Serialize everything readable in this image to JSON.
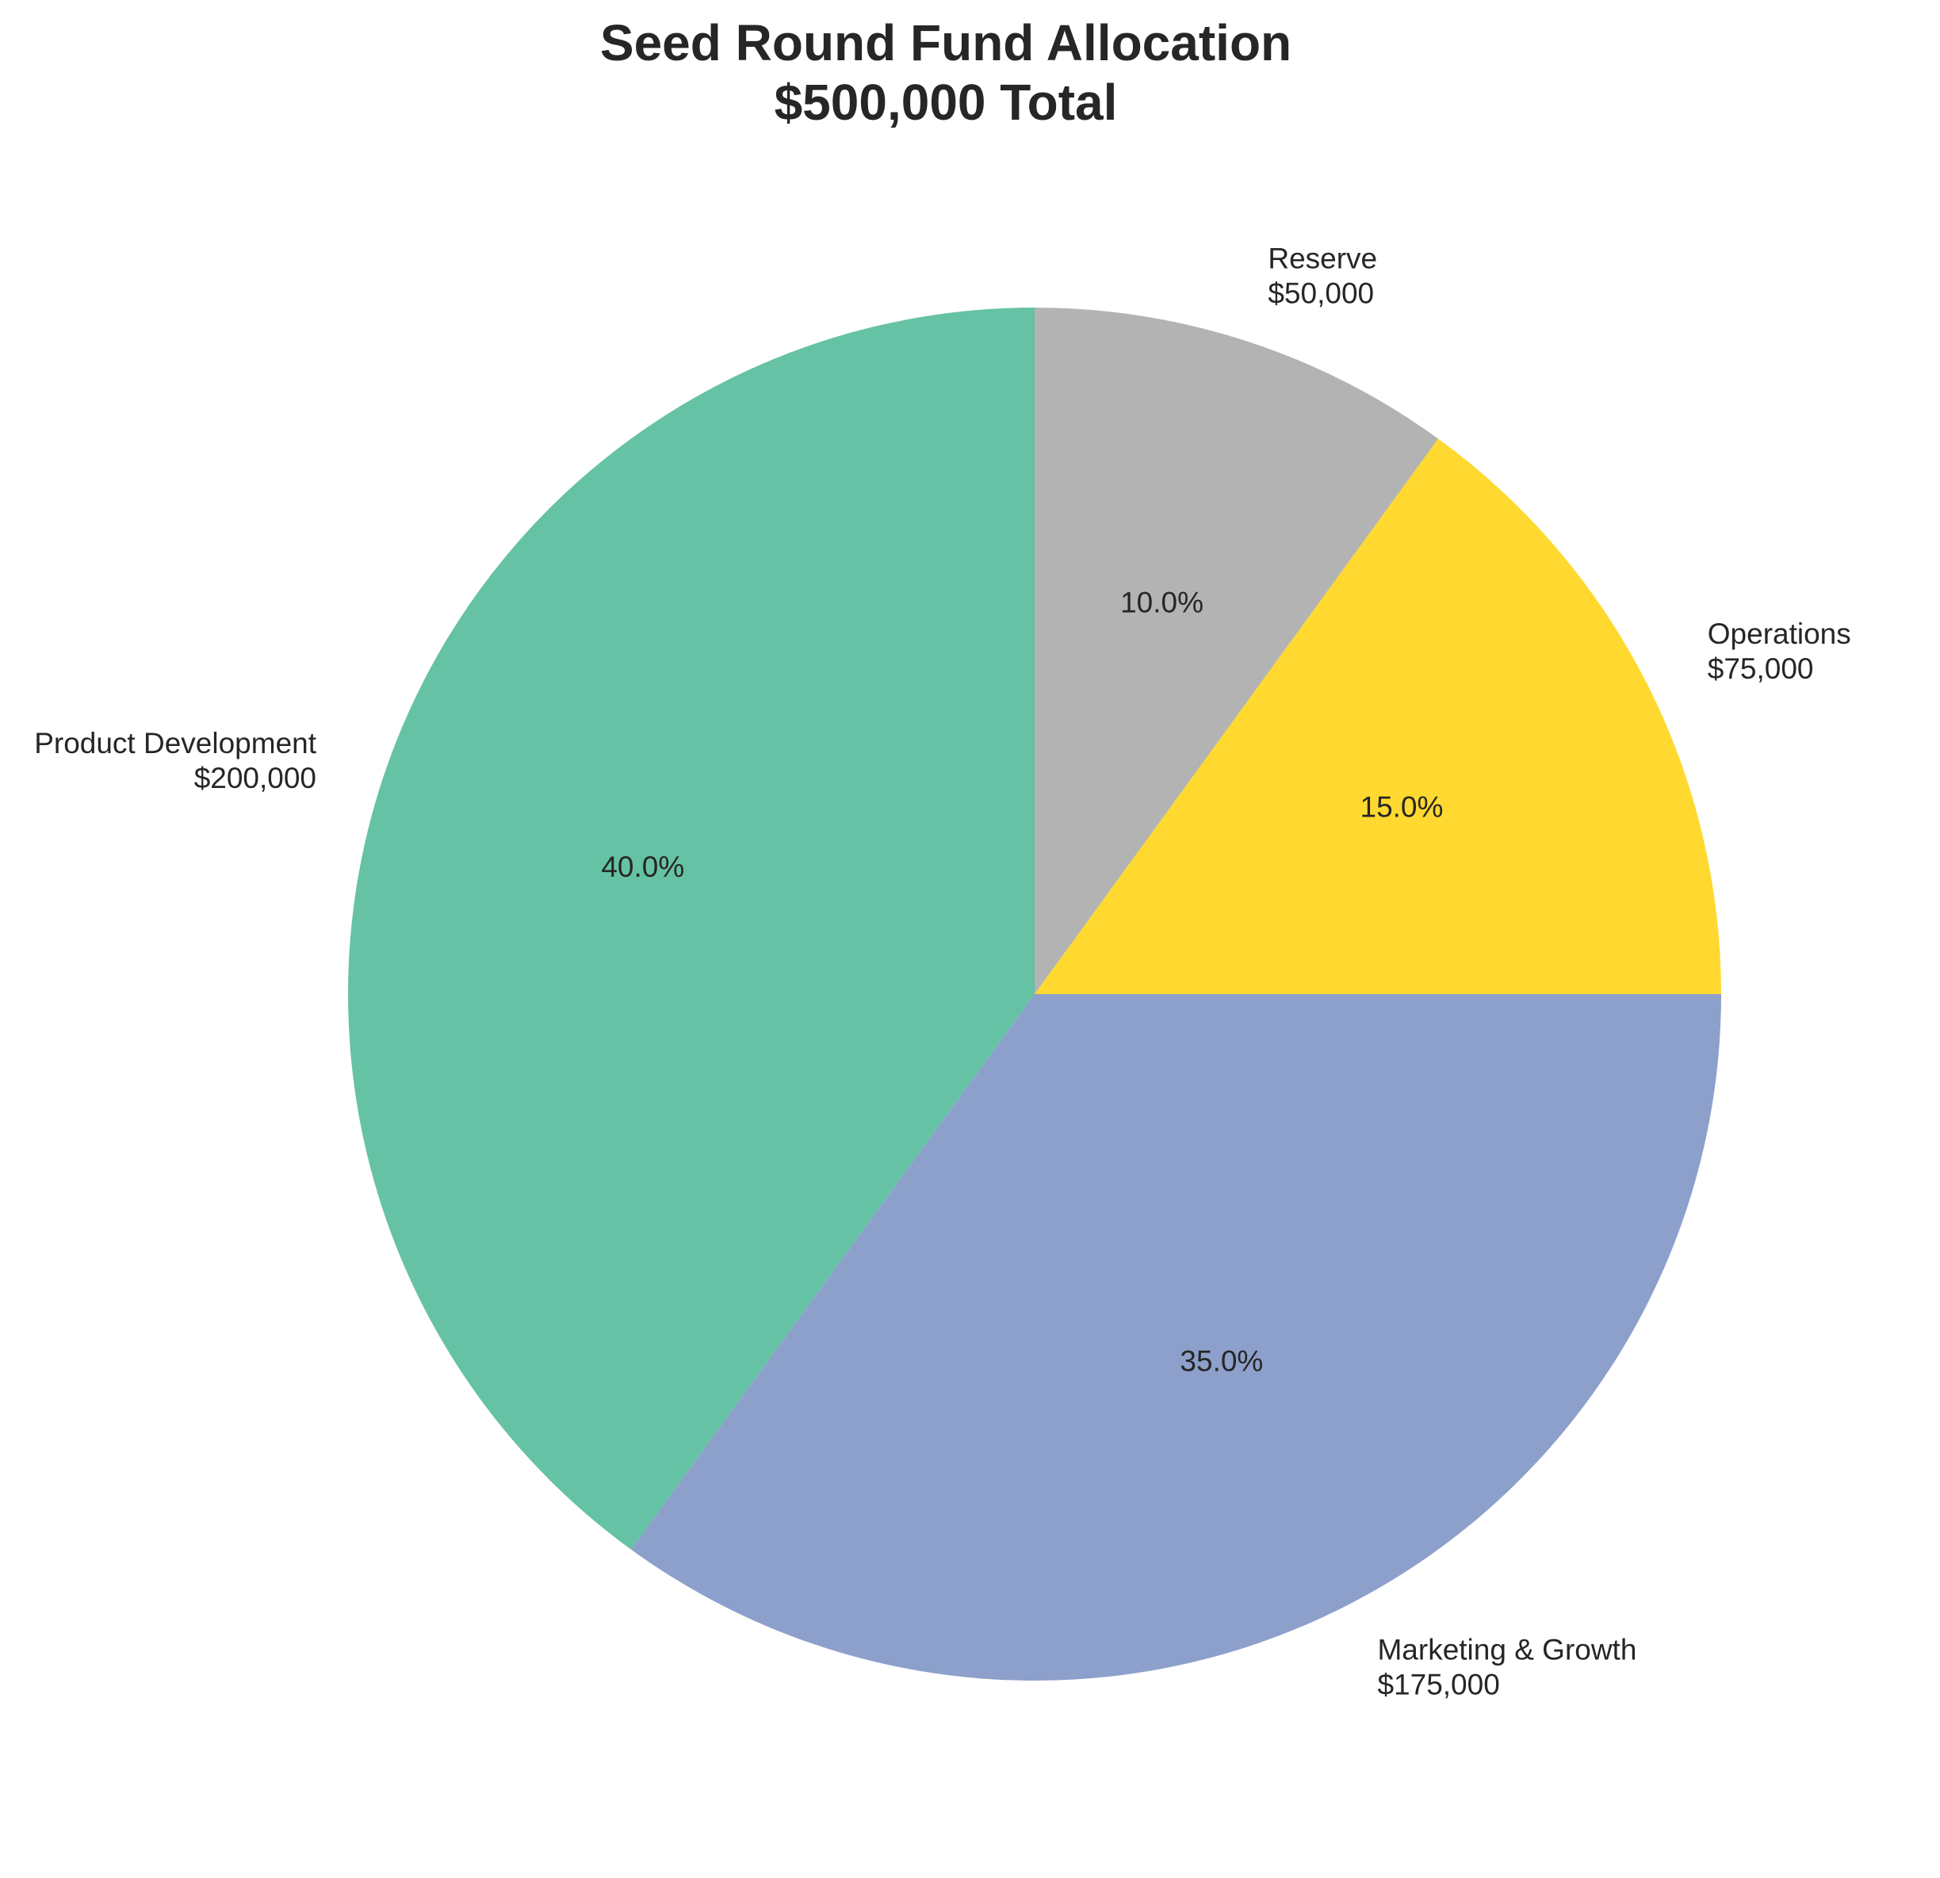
{
  "chart_data": {
    "type": "pie",
    "title": "Seed Round Fund Allocation",
    "subtitle": "$500,000 Total",
    "start_angle_deg": 90,
    "direction": "counterclockwise",
    "slices": [
      {
        "label": "Product Development",
        "amount_label": "$200,000",
        "value": 200000,
        "percent_label": "40.0%",
        "color": "#66c2a5"
      },
      {
        "label": "Marketing & Growth",
        "amount_label": "$175,000",
        "value": 175000,
        "percent_label": "35.0%",
        "color": "#8da0cb"
      },
      {
        "label": "Operations",
        "amount_label": "$75,000",
        "value": 75000,
        "percent_label": "15.0%",
        "color": "#ffd92f"
      },
      {
        "label": "Reserve",
        "amount_label": "$50,000",
        "value": 50000,
        "percent_label": "10.0%",
        "color": "#b3b3b3"
      }
    ]
  }
}
